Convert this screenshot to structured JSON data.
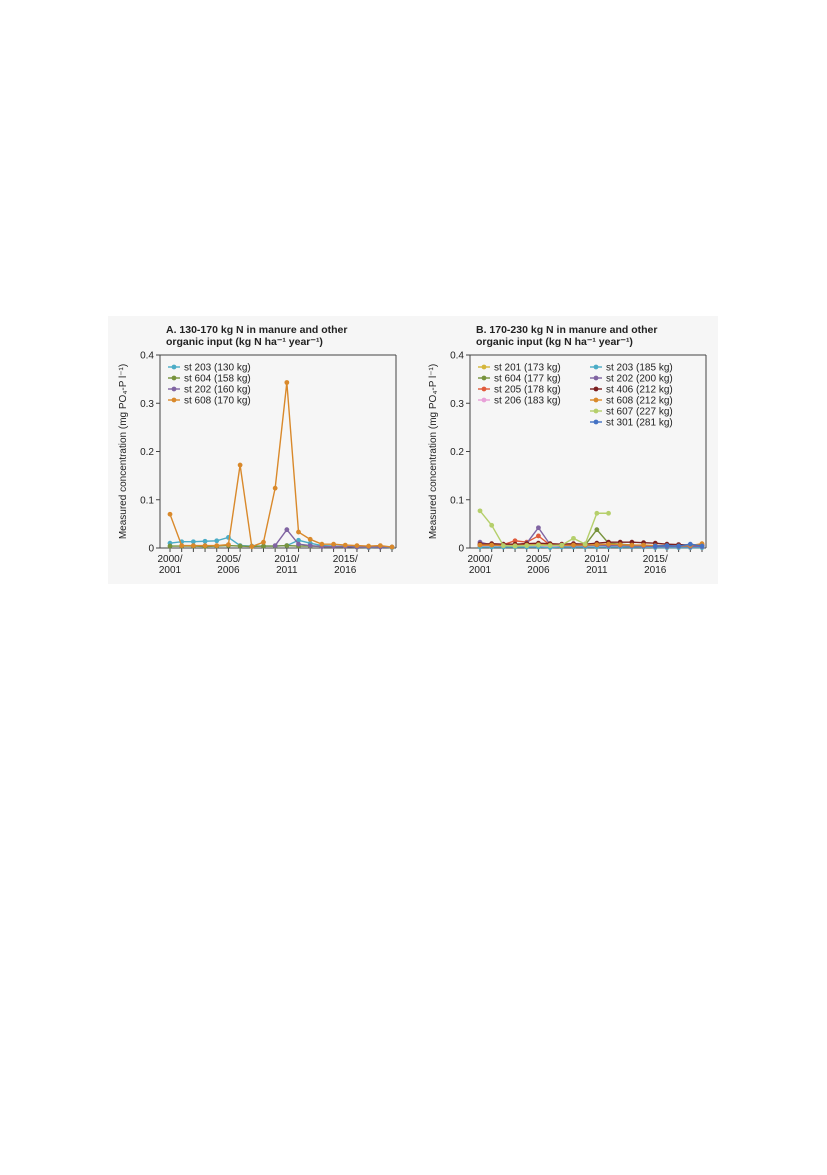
{
  "chart_data": [
    {
      "type": "line",
      "title": [
        "A. 130-170 kg N in manure and other",
        "organic input (kg N ha⁻¹ year⁻¹)"
      ],
      "y_label": "Measured concentration (mg PO₄-P l⁻¹)",
      "categories": [
        "2000/2001",
        null,
        null,
        null,
        null,
        "2005/2006",
        null,
        null,
        null,
        null,
        "2010/2011",
        null,
        null,
        null,
        null,
        "2015/2016",
        null,
        null,
        null,
        null
      ],
      "ylim": [
        0,
        0.4
      ],
      "yticks": [
        0,
        0.1,
        0.2,
        0.3,
        0.4
      ],
      "legend": "upper left",
      "series": [
        {
          "name": "st 203 (130 kg)",
          "color": "#4bacc6",
          "values": [
            0.01,
            0.013,
            0.013,
            0.014,
            0.015,
            0.022,
            0.005,
            0.004,
            0.004,
            0.004,
            0.005,
            0.016,
            0.01,
            0.005,
            0.004,
            0.003,
            0.002,
            0.001,
            0.002,
            0.001
          ]
        },
        {
          "name": "st 604 (158 kg)",
          "color": "#77933c",
          "values": [
            0.004,
            0.004,
            0.004,
            0.003,
            0.004,
            0.005,
            0.004,
            0.003,
            0.004,
            0.004,
            0.005,
            0.004,
            0.004,
            0.003,
            0.003,
            0.003,
            0.002,
            0.002,
            0.003,
            0.002
          ]
        },
        {
          "name": "st 202 (160 kg)",
          "color": "#8064a2",
          "values": [
            null,
            null,
            null,
            null,
            null,
            null,
            null,
            null,
            null,
            0.005,
            0.038,
            0.008,
            0.005,
            0.003,
            0.003,
            0.003,
            0.002,
            0.002,
            0.002,
            0.002
          ]
        },
        {
          "name": "st 608 (170 kg)",
          "color": "#d9892b",
          "values": [
            0.07,
            0.005,
            0.005,
            0.005,
            0.005,
            0.007,
            0.172,
            0.003,
            0.012,
            0.124,
            0.343,
            0.033,
            0.018,
            0.008,
            0.008,
            0.006,
            0.005,
            0.004,
            0.005,
            0.002
          ]
        }
      ]
    },
    {
      "type": "line",
      "title": [
        "B. 170-230 kg N in manure and other",
        "organic input (kg N ha⁻¹ year⁻¹)"
      ],
      "y_label": "Measured concentration (mg PO₄-P l⁻¹)",
      "categories": [
        "2000/2001",
        null,
        null,
        null,
        null,
        "2005/2006",
        null,
        null,
        null,
        null,
        "2010/2011",
        null,
        null,
        null,
        null,
        "2015/2016",
        null,
        null,
        null,
        null
      ],
      "ylim": [
        0,
        0.4
      ],
      "yticks": [
        0,
        0.1,
        0.2,
        0.3,
        0.4
      ],
      "legend": "upper left",
      "series": [
        {
          "name": "st 201 (173 kg)",
          "color": "#d4b63a",
          "values": [
            0.005,
            0.005,
            0.004,
            0.004,
            0.005,
            0.006,
            0.005,
            0.004,
            0.005,
            0.005,
            0.006,
            0.005,
            0.004,
            0.004,
            0.004,
            0.003,
            0.003,
            0.003,
            0.003,
            0.003
          ]
        },
        {
          "name": "st 604 (177 kg)",
          "color": "#77933c",
          "values": [
            0.005,
            0.005,
            0.004,
            0.005,
            0.005,
            0.008,
            0.006,
            0.005,
            0.005,
            0.006,
            0.038,
            0.01,
            0.008,
            0.006,
            0.005,
            0.004,
            0.003,
            0.003,
            0.003,
            0.003
          ]
        },
        {
          "name": "st 205 (178 kg)",
          "color": "#e05a3b",
          "values": [
            0.005,
            0.006,
            0.007,
            0.015,
            0.012,
            0.025,
            0.006,
            0.005,
            0.005,
            0.005,
            0.006,
            0.005,
            0.005,
            0.004,
            0.004,
            0.003,
            0.003,
            0.003,
            0.003,
            0.003
          ]
        },
        {
          "name": "st 206 (183 kg)",
          "color": "#e8a0d8",
          "values": [
            0.003,
            0.003,
            0.003,
            0.003,
            0.003,
            0.004,
            0.003,
            0.003,
            0.003,
            0.003,
            0.003,
            0.003,
            0.003,
            0.003,
            0.002,
            0.002,
            0.002,
            0.002,
            0.002,
            0.002
          ]
        },
        {
          "name": "st 203 (185 kg)",
          "color": "#4bacc6",
          "values": [
            0.002,
            0.002,
            0.002,
            0.002,
            0.002,
            0.002,
            0.001,
            0.002,
            0.002,
            0.002,
            0.002,
            0.002,
            0.002,
            0.002,
            0.002,
            0.001,
            0.001,
            0.001,
            0.001,
            0.001
          ]
        },
        {
          "name": "st 202 (200 kg)",
          "color": "#8064a2",
          "values": [
            0.012,
            0.006,
            0.005,
            0.006,
            0.01,
            0.042,
            0.007,
            0.005,
            0.005,
            0.005,
            0.006,
            0.005,
            0.005,
            0.004,
            0.004,
            0.003,
            0.003,
            0.003,
            0.003,
            0.003
          ]
        },
        {
          "name": "st 406 (212 kg)",
          "color": "#7b1f1f",
          "values": [
            0.008,
            0.009,
            0.008,
            0.008,
            0.009,
            0.01,
            0.009,
            0.008,
            0.009,
            0.008,
            0.01,
            0.012,
            0.012,
            0.012,
            0.011,
            0.01,
            0.008,
            0.007,
            0.006,
            0.006
          ]
        },
        {
          "name": "st 608 (212 kg)",
          "color": "#d9892b",
          "values": [
            0.006,
            0.006,
            0.005,
            0.005,
            0.006,
            0.007,
            0.006,
            0.005,
            0.006,
            0.006,
            0.007,
            0.008,
            0.007,
            0.006,
            0.006,
            0.005,
            0.005,
            0.004,
            0.005,
            0.009
          ]
        },
        {
          "name": "st 607 (227 kg)",
          "color": "#b5cf6b",
          "values": [
            0.077,
            0.047,
            0.005,
            0.004,
            0.005,
            0.006,
            0.005,
            0.006,
            0.02,
            0.008,
            0.072,
            0.072,
            null,
            null,
            null,
            null,
            null,
            null,
            null,
            null
          ]
        },
        {
          "name": "st 301 (281 kg)",
          "color": "#4472c4",
          "values": [
            null,
            null,
            null,
            null,
            null,
            null,
            null,
            null,
            null,
            null,
            null,
            null,
            null,
            null,
            null,
            0.004,
            0.005,
            0.004,
            0.008,
            0.004
          ]
        }
      ]
    }
  ]
}
